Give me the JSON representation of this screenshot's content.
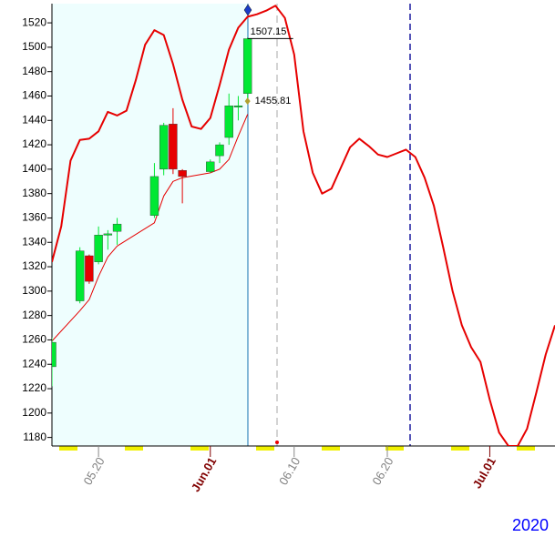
{
  "chart_data": {
    "type": "candlestick",
    "x": [
      "05.15",
      "05.18",
      "05.19",
      "05.20",
      "05.21",
      "05.22",
      "05.26",
      "05.27",
      "05.28",
      "05.29",
      "06.01",
      "06.02",
      "06.03",
      "06.04",
      "06.05"
    ],
    "open": [
      1238,
      1292,
      1329,
      1324,
      1346,
      1349,
      1362,
      1400,
      1437,
      1399,
      1398,
      1411,
      1426,
      1451,
      1462
    ],
    "high": [
      1262,
      1336,
      1330,
      1353,
      1350,
      1360,
      1405,
      1438,
      1450,
      1400,
      1408,
      1422,
      1462,
      1460,
      1508
    ],
    "low": [
      1222,
      1290,
      1306,
      1322,
      1334,
      1338,
      1360,
      1395,
      1396,
      1372,
      1397,
      1405,
      1420,
      1440,
      1455
    ],
    "close": [
      1258,
      1333,
      1308,
      1346,
      1347,
      1355,
      1394,
      1436,
      1400,
      1394,
      1406,
      1420,
      1452,
      1452,
      1507
    ],
    "up_color": "#00e833",
    "down_color": "#e60000",
    "lines": [
      {
        "color": "#e60000",
        "width": 2,
        "x": [
          "05.15",
          "05.16",
          "05.17",
          "05.18",
          "05.19",
          "05.20",
          "05.21",
          "05.22",
          "05.23",
          "05.24",
          "05.25",
          "05.26",
          "05.27",
          "05.28",
          "05.29",
          "05.30",
          "05.31",
          "06.01",
          "06.02",
          "06.03",
          "06.04",
          "06.05",
          "06.06",
          "06.07",
          "06.08",
          "06.09",
          "06.10",
          "06.11",
          "06.12",
          "06.13",
          "06.14",
          "06.15",
          "06.16",
          "06.17",
          "06.18",
          "06.19",
          "06.20",
          "06.21",
          "06.22",
          "06.23",
          "06.24",
          "06.25",
          "06.26",
          "06.27",
          "06.28",
          "06.29",
          "06.30",
          "07.01",
          "07.02",
          "07.03",
          "07.04",
          "07.05",
          "07.06",
          "07.07",
          "07.08"
        ],
        "values": [
          1324,
          1353,
          1407,
          1424,
          1425,
          1431,
          1447,
          1444,
          1448,
          1473,
          1502,
          1514,
          1510,
          1486,
          1457,
          1435,
          1433,
          1442,
          1469,
          1498,
          1516,
          1525,
          1527,
          1530,
          1534,
          1524,
          1494,
          1431,
          1397,
          1380,
          1384,
          1401,
          1418,
          1425,
          1419,
          1412,
          1410,
          1413,
          1416,
          1410,
          1393,
          1370,
          1336,
          1300,
          1272,
          1254,
          1242,
          1211,
          1184,
          1173,
          1173,
          1187,
          1217,
          1248,
          1272
        ]
      },
      {
        "color": "#e60000",
        "width": 1,
        "x": [
          "05.15",
          "05.18",
          "05.19",
          "05.20",
          "05.21",
          "05.22",
          "05.26",
          "05.27",
          "05.28",
          "05.29",
          "06.01",
          "06.02",
          "06.03",
          "06.04",
          "06.05"
        ],
        "values": [
          1259,
          1284,
          1293,
          1312,
          1328,
          1337,
          1356,
          1378,
          1390,
          1393,
          1397,
          1400,
          1408,
          1427,
          1445
        ]
      }
    ],
    "annotations": [
      {
        "x": "06.05",
        "value": 1507.15
      },
      {
        "x": "06.05",
        "value": 1455.81
      }
    ],
    "xlim": [
      "05.15",
      "07.08"
    ],
    "xticks": [
      "05.20",
      {
        "value": "06.01",
        "label": "Jun.01"
      },
      "06.10",
      "06.20",
      {
        "value": "07.01",
        "label": "Jul.01"
      }
    ],
    "ylim": [
      1173,
      1535
    ],
    "yticks": [
      1180,
      1200,
      1220,
      1240,
      1260,
      1280,
      1300,
      1320,
      1340,
      1360,
      1380,
      1400,
      1420,
      1440,
      1460,
      1480,
      1500,
      1520
    ],
    "year": "2020"
  }
}
